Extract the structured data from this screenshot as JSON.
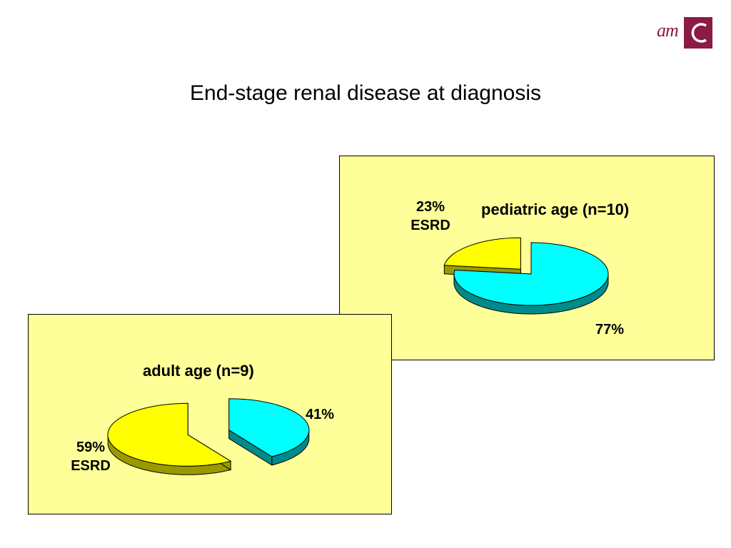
{
  "slide": {
    "title": "End-stage renal disease at diagnosis",
    "logo_text": "am"
  },
  "colors": {
    "cyan": "#00ffff",
    "cyan_side": "#008b8b",
    "yellow": "#ffff00",
    "yellow_side": "#9a9a00",
    "panel": "#ffff99",
    "logo": "#8b1a44"
  },
  "chart_data": [
    {
      "type": "pie",
      "title": "pediatric age (n=10)",
      "slices": [
        {
          "value": 23,
          "label": "23%",
          "category": "ESRD",
          "color": "#ffff00",
          "side_color": "#9a9a00",
          "exploded": true
        },
        {
          "value": 77,
          "label": "77%",
          "category": "",
          "color": "#00ffff",
          "side_color": "#008b8b",
          "exploded": false
        }
      ]
    },
    {
      "type": "pie",
      "title": "adult age (n=9)",
      "slices": [
        {
          "value": 41,
          "label": "41%",
          "category": "",
          "color": "#00ffff",
          "side_color": "#008b8b",
          "exploded": true
        },
        {
          "value": 59,
          "label": "59%",
          "category": "ESRD",
          "color": "#ffff00",
          "side_color": "#9a9a00",
          "exploded": true
        }
      ]
    }
  ]
}
